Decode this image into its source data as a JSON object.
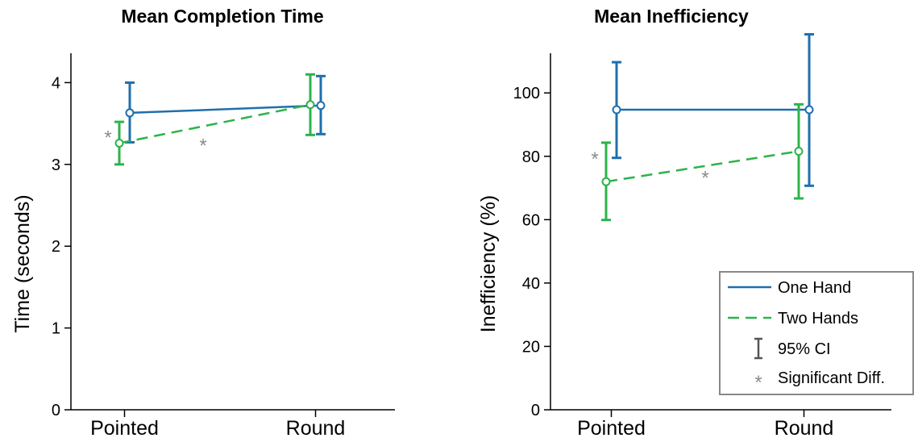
{
  "colors": {
    "one_hand": "#1f6fad",
    "two_hands": "#2db34a",
    "significance": "#8c8c8c",
    "legend_border": "#888888",
    "axis": "#000000"
  },
  "legend": {
    "items": [
      {
        "label": "One Hand",
        "kind": "solid-line",
        "series": 0
      },
      {
        "label": "Two Hands",
        "kind": "dashed-line",
        "series": 1
      },
      {
        "label": "95% CI",
        "kind": "errorbar-icon"
      },
      {
        "label": "Significant Diff.",
        "kind": "asterisk-icon"
      }
    ]
  },
  "chart_data": [
    {
      "type": "line",
      "title": "Mean Completion Time",
      "xlabel": "",
      "ylabel": "Time  (seconds)",
      "categories": [
        "Pointed",
        "Round"
      ],
      "ylim": [
        0,
        4.3
      ],
      "yticks": [
        0,
        1,
        2,
        3,
        4
      ],
      "grid": false,
      "series": [
        {
          "name": "One Hand",
          "style": "solid",
          "values": [
            3.63,
            3.72
          ],
          "ci_low": [
            3.27,
            3.37
          ],
          "ci_high": [
            4.0,
            4.08
          ]
        },
        {
          "name": "Two Hands",
          "style": "dashed",
          "values": [
            3.26,
            3.73
          ],
          "ci_low": [
            3.0,
            3.36
          ],
          "ci_high": [
            3.52,
            4.1
          ]
        }
      ],
      "annotations": [
        {
          "text": "*",
          "meaning": "significant difference between One Hand and Two Hands at Pointed",
          "category": "Pointed",
          "y": 3.4
        },
        {
          "text": "*",
          "meaning": "significant difference for Two Hands between Pointed and Round",
          "category": "mid",
          "y": 3.3
        }
      ]
    },
    {
      "type": "line",
      "title": "Mean Inefficiency",
      "xlabel": "",
      "ylabel": "Inefficiency (%)",
      "categories": [
        "Pointed",
        "Round"
      ],
      "ylim": [
        0,
        111
      ],
      "yticks": [
        0,
        20,
        40,
        60,
        80,
        100
      ],
      "grid": false,
      "legend_position": "bottom-right",
      "series": [
        {
          "name": "One Hand",
          "style": "solid",
          "values": [
            94.7,
            94.7
          ],
          "ci_low": [
            79.5,
            70.7
          ],
          "ci_high": [
            109.7,
            118.5
          ]
        },
        {
          "name": "Two Hands",
          "style": "dashed",
          "values": [
            72.0,
            81.6
          ],
          "ci_low": [
            59.9,
            66.7
          ],
          "ci_high": [
            84.3,
            96.4
          ]
        }
      ],
      "annotations": [
        {
          "text": "*",
          "meaning": "significant difference between One Hand and Two Hands at Pointed",
          "category": "Pointed",
          "y": 81
        },
        {
          "text": "*",
          "meaning": "significant difference for Two Hands between Pointed and Round",
          "category": "mid",
          "y": 75
        }
      ]
    }
  ]
}
